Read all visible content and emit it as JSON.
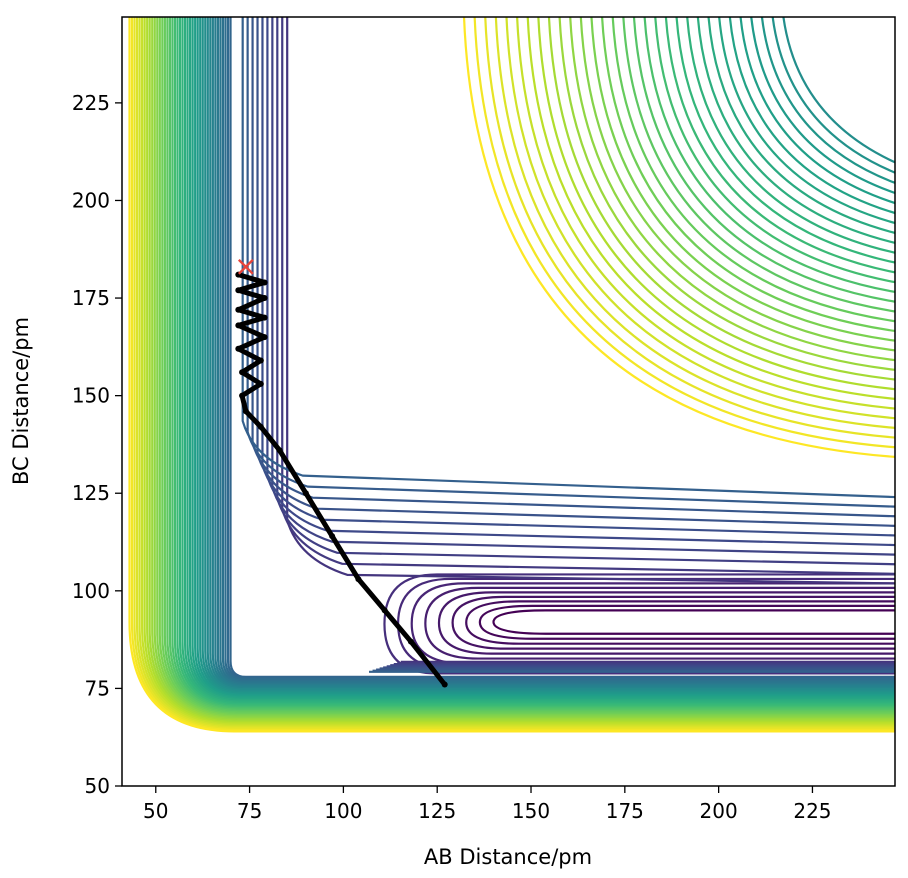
{
  "chart_data": {
    "type": "contour",
    "title": "",
    "xlabel": "AB Distance/pm",
    "ylabel": "BC Distance/pm",
    "xlim": [
      41,
      247
    ],
    "ylim": [
      50,
      247
    ],
    "x_ticks": [
      50,
      75,
      100,
      125,
      150,
      175,
      200,
      225
    ],
    "y_ticks": [
      50,
      75,
      100,
      125,
      150,
      175,
      200,
      225
    ],
    "grid": false,
    "legend": "none",
    "colormap": "viridis",
    "colors": {
      "low": "#440154",
      "mid": "#21908d",
      "high": "#fde725",
      "trajectory": "#000000",
      "start_marker": "#e8443a"
    },
    "potential_minimum": {
      "x": 140,
      "y": 92
    },
    "start_marker": {
      "symbol": "x",
      "x": 74,
      "y": 183
    },
    "trajectory": [
      {
        "x": 72,
        "y": 181
      },
      {
        "x": 79,
        "y": 179
      },
      {
        "x": 72,
        "y": 177
      },
      {
        "x": 79,
        "y": 175
      },
      {
        "x": 72,
        "y": 172
      },
      {
        "x": 79,
        "y": 170
      },
      {
        "x": 72,
        "y": 168
      },
      {
        "x": 79,
        "y": 165
      },
      {
        "x": 72,
        "y": 162
      },
      {
        "x": 78,
        "y": 159
      },
      {
        "x": 73,
        "y": 156
      },
      {
        "x": 78,
        "y": 153
      },
      {
        "x": 73,
        "y": 150
      },
      {
        "x": 74,
        "y": 146
      },
      {
        "x": 78,
        "y": 142
      },
      {
        "x": 83,
        "y": 136
      },
      {
        "x": 90,
        "y": 125
      },
      {
        "x": 97,
        "y": 114
      },
      {
        "x": 104,
        "y": 103
      },
      {
        "x": 111,
        "y": 95
      },
      {
        "x": 118,
        "y": 87
      },
      {
        "x": 127,
        "y": 76
      }
    ]
  }
}
